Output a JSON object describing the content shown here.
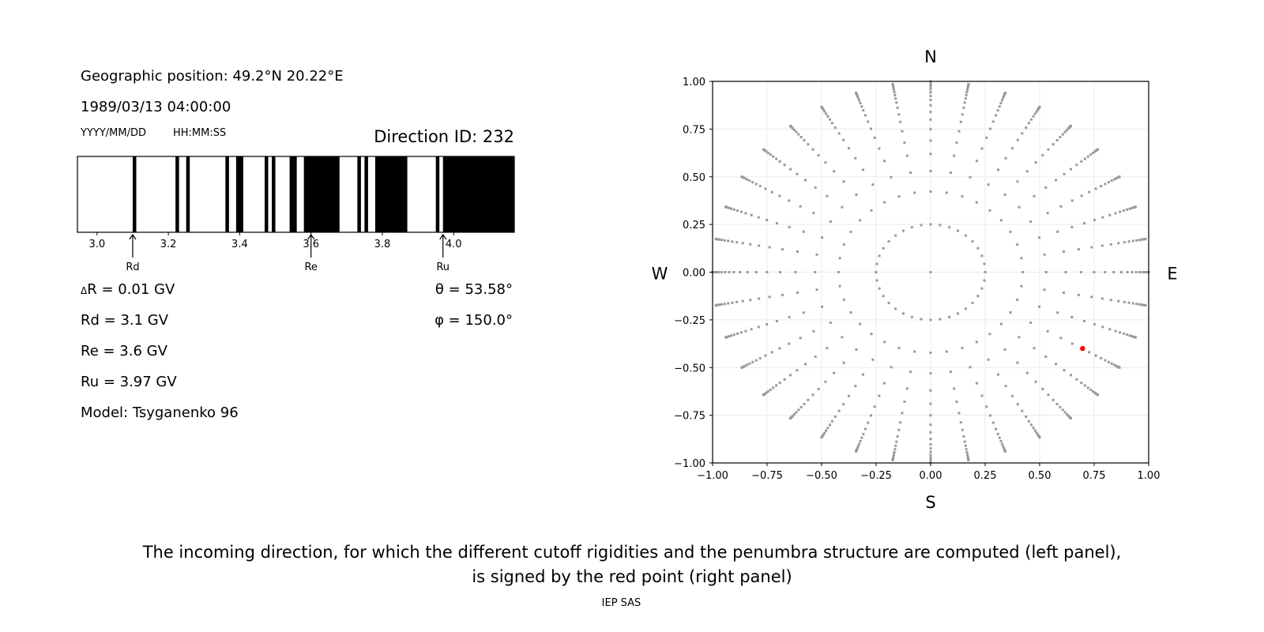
{
  "left_panel": {
    "geo_position": "Geographic position: 49.2°N 20.22°E",
    "datetime": "1989/03/13 04:00:00",
    "date_format": "YYYY/MM/DD",
    "time_format": "HH:MM:SS",
    "direction_id": "Direction ID: 232",
    "delta_r": "R = 0.01 GV",
    "delta_symbol": "Δ",
    "rd": "Rd = 3.1 GV",
    "re": "Re = 3.6 GV",
    "ru": "Ru = 3.97 GV",
    "model": "Model: Tsyganenko 96",
    "theta": "θ = 53.58°",
    "phi": "φ = 150.0°"
  },
  "chart_data": [
    {
      "type": "bar",
      "description_role": "penumbra",
      "xlim": [
        2.945,
        4.17
      ],
      "xticks": [
        "3.0",
        "3.2",
        "3.4",
        "3.6",
        "3.8",
        "4.0"
      ],
      "forbidden_bands": [
        [
          3.1,
          3.11
        ],
        [
          3.22,
          3.23
        ],
        [
          3.25,
          3.26
        ],
        [
          3.36,
          3.37
        ],
        [
          3.39,
          3.41
        ],
        [
          3.47,
          3.48
        ],
        [
          3.49,
          3.5
        ],
        [
          3.54,
          3.56
        ],
        [
          3.58,
          3.68
        ],
        [
          3.73,
          3.74
        ],
        [
          3.75,
          3.76
        ],
        [
          3.78,
          3.87
        ],
        [
          3.95,
          3.96
        ],
        [
          3.97,
          4.17
        ]
      ],
      "band_color": "#000000",
      "markers": [
        {
          "label": "Rd",
          "value": 3.1
        },
        {
          "label": "Re",
          "value": 3.6
        },
        {
          "label": "Ru",
          "value": 3.97
        }
      ]
    },
    {
      "type": "scatter",
      "xlim": [
        -1,
        1
      ],
      "ylim": [
        -1,
        1
      ],
      "xticks": [
        "−1.00",
        "−0.75",
        "−0.50",
        "−0.25",
        "0.00",
        "0.25",
        "0.50",
        "0.75",
        "1.00"
      ],
      "yticks": [
        "−1.00",
        "−0.75",
        "−0.50",
        "−0.25",
        "0.00",
        "0.25",
        "0.50",
        "0.75",
        "1.00"
      ],
      "grid": true,
      "compass": {
        "top": "N",
        "bottom": "S",
        "left": "W",
        "right": "E"
      },
      "azimuth_step_deg": 10,
      "zenith_angles_deg": [
        0,
        14.5,
        25,
        32,
        38.3,
        43.6,
        48.6,
        53.1,
        57.1,
        61,
        64.5,
        67.5,
        70.5,
        73.5,
        76.5,
        79.5,
        82.5,
        85.5,
        88,
        90
      ],
      "point_color": "#999999",
      "selected_point": {
        "x": 0.697,
        "y": -0.4,
        "color": "#ff0000"
      }
    }
  ],
  "caption": {
    "line1": "The incoming direction, for which the different cutoff rigidities and the penumbra structure are computed (left panel),",
    "line2": "is signed by the red point (right panel)",
    "credit": "IEP SAS"
  }
}
